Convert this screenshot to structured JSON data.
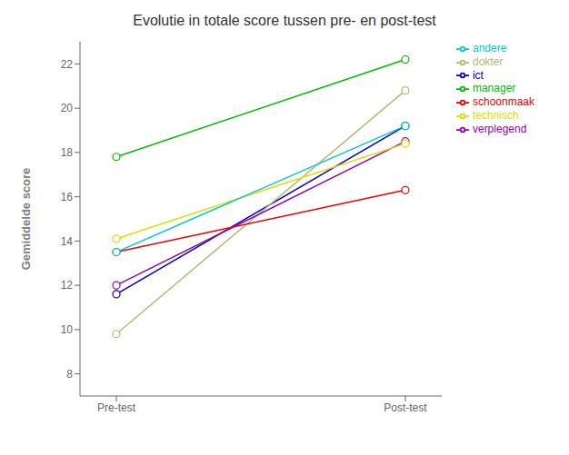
{
  "chart_data": {
    "type": "line",
    "title": "Evolutie in totale score tussen pre- en post-test",
    "ylabel": "Gemiddelde score",
    "categories": [
      "Pre-test",
      "Post-test"
    ],
    "series": [
      {
        "name": "ict",
        "color": "#0000cc",
        "values": [
          11.6,
          19.2
        ]
      },
      {
        "name": "manager",
        "color": "#00bb00",
        "values": [
          17.8,
          22.2
        ]
      },
      {
        "name": "dokter",
        "color": "#b8b870",
        "values": [
          9.8,
          20.8
        ]
      },
      {
        "name": "verplegend",
        "color": "#9900aa",
        "values": [
          12.0,
          18.5
        ]
      },
      {
        "name": "technisch",
        "color": "#dddd00",
        "values": [
          14.1,
          18.4
        ]
      },
      {
        "name": "schoonmaak",
        "color": "#ee0000",
        "values": [
          13.5,
          16.3
        ]
      },
      {
        "name": "andere",
        "color": "#00cccc",
        "values": [
          13.5,
          19.2
        ]
      }
    ],
    "ylim": [
      7,
      23
    ],
    "yticks": [
      8,
      10,
      12,
      14,
      16,
      18,
      20,
      22
    ],
    "grid": false,
    "legend": "right",
    "marker": "circle"
  }
}
